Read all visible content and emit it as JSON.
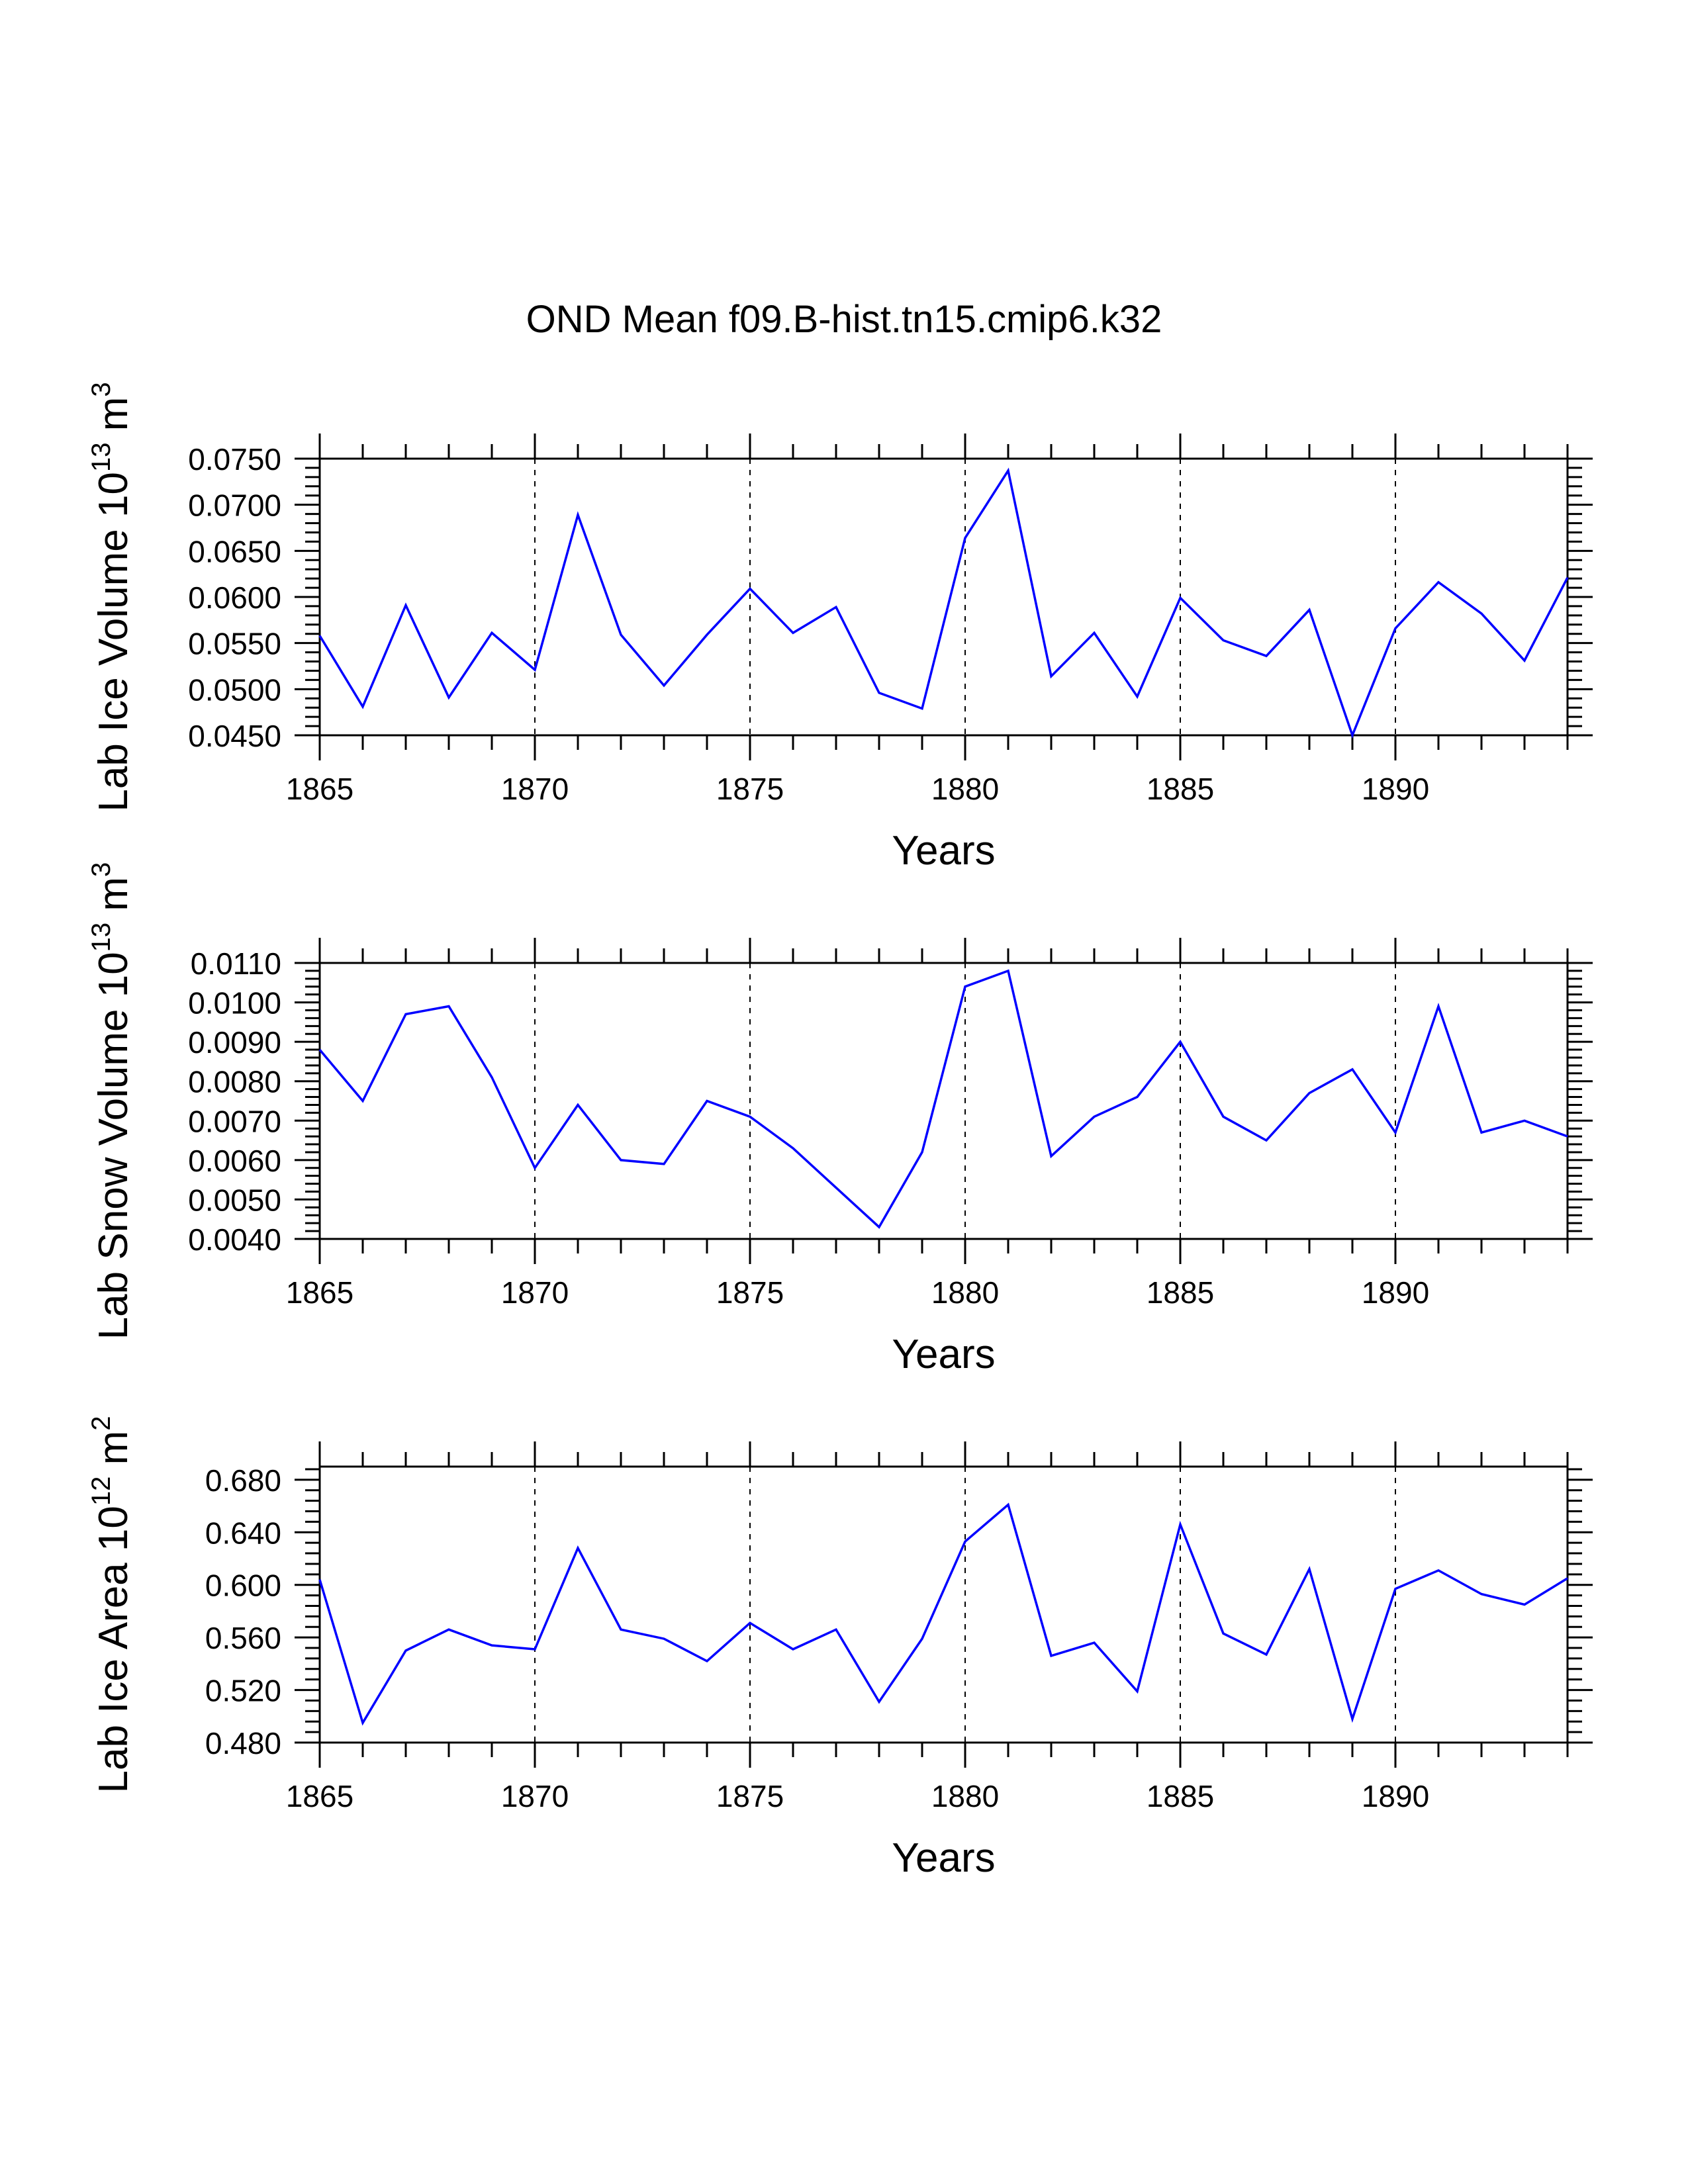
{
  "title": "OND Mean f09.B-hist.tn15.cmip6.k32",
  "colors": {
    "line": "#0000ff",
    "axis": "#000000",
    "grid": "#000000"
  },
  "chart_data": [
    {
      "type": "line",
      "title": "",
      "ylabel_main": "Lab Ice Volume 10",
      "ylabel_exp": "13",
      "ylabel_unit": " m",
      "ylabel_unit_exp": "3",
      "xlabel": "Years",
      "xlim": [
        1865,
        1894
      ],
      "ylim": [
        0.045,
        0.075
      ],
      "major_yticks": [
        0.045,
        0.05,
        0.055,
        0.06,
        0.065,
        0.07,
        0.075
      ],
      "ytick_labels": [
        "0.0450",
        "0.0500",
        "0.0550",
        "0.0600",
        "0.0650",
        "0.0700",
        "0.0750"
      ],
      "minor_ystep": 0.001,
      "xticks": [
        1865,
        1870,
        1875,
        1880,
        1885,
        1890
      ],
      "xtick_labels": [
        "1865",
        "1870",
        "1875",
        "1880",
        "1885",
        "1890"
      ],
      "gridlines_x": [
        1870,
        1875,
        1880,
        1885,
        1890
      ],
      "x": [
        1865,
        1866,
        1867,
        1868,
        1869,
        1870,
        1871,
        1872,
        1873,
        1874,
        1875,
        1876,
        1877,
        1878,
        1879,
        1880,
        1881,
        1882,
        1883,
        1884,
        1885,
        1886,
        1887,
        1888,
        1889,
        1890,
        1891,
        1892,
        1893,
        1894
      ],
      "y": [
        0.0558,
        0.0481,
        0.0591,
        0.0491,
        0.0561,
        0.0521,
        0.0689,
        0.0559,
        0.0504,
        0.0559,
        0.0609,
        0.0561,
        0.0589,
        0.0496,
        0.0479,
        0.0664,
        0.0737,
        0.0514,
        0.0561,
        0.0492,
        0.0599,
        0.0553,
        0.0536,
        0.0586,
        0.045,
        0.0566,
        0.0616,
        0.0582,
        0.0531,
        0.0621
      ]
    },
    {
      "type": "line",
      "title": "",
      "ylabel_main": "Lab Snow Volume 10",
      "ylabel_exp": "13",
      "ylabel_unit": " m",
      "ylabel_unit_exp": "3",
      "xlabel": "Years",
      "xlim": [
        1865,
        1894
      ],
      "ylim": [
        0.004,
        0.011
      ],
      "major_yticks": [
        0.004,
        0.005,
        0.006,
        0.007,
        0.008,
        0.009,
        0.01,
        0.011
      ],
      "ytick_labels": [
        "0.0040",
        "0.0050",
        "0.0060",
        "0.0070",
        "0.0080",
        "0.0090",
        "0.0100",
        "0.0110"
      ],
      "minor_ystep": 0.0002,
      "xticks": [
        1865,
        1870,
        1875,
        1880,
        1885,
        1890
      ],
      "xtick_labels": [
        "1865",
        "1870",
        "1875",
        "1880",
        "1885",
        "1890"
      ],
      "gridlines_x": [
        1870,
        1875,
        1880,
        1885,
        1890
      ],
      "x": [
        1865,
        1866,
        1867,
        1868,
        1869,
        1870,
        1871,
        1872,
        1873,
        1874,
        1875,
        1876,
        1877,
        1878,
        1879,
        1880,
        1881,
        1882,
        1883,
        1884,
        1885,
        1886,
        1887,
        1888,
        1889,
        1890,
        1891,
        1892,
        1893,
        1894
      ],
      "y": [
        0.0088,
        0.0075,
        0.0097,
        0.0099,
        0.0081,
        0.0058,
        0.0074,
        0.006,
        0.0059,
        0.0075,
        0.0071,
        0.0063,
        0.0053,
        0.0043,
        0.0062,
        0.0104,
        0.0108,
        0.0061,
        0.0071,
        0.0076,
        0.009,
        0.0071,
        0.0065,
        0.0077,
        0.0083,
        0.0067,
        0.0099,
        0.0067,
        0.007,
        0.0066
      ]
    },
    {
      "type": "line",
      "title": "",
      "ylabel_main": "Lab Ice Area 10",
      "ylabel_exp": "12",
      "ylabel_unit": " m",
      "ylabel_unit_exp": "2",
      "xlabel": "Years",
      "xlim": [
        1865,
        1894
      ],
      "ylim": [
        0.48,
        0.69
      ],
      "major_yticks": [
        0.48,
        0.52,
        0.56,
        0.6,
        0.64,
        0.68
      ],
      "ytick_labels": [
        "0.480",
        "0.520",
        "0.560",
        "0.600",
        "0.640",
        "0.680"
      ],
      "minor_ystep": 0.008,
      "xticks": [
        1865,
        1870,
        1875,
        1880,
        1885,
        1890
      ],
      "xtick_labels": [
        "1865",
        "1870",
        "1875",
        "1880",
        "1885",
        "1890"
      ],
      "gridlines_x": [
        1870,
        1875,
        1880,
        1885,
        1890
      ],
      "x": [
        1865,
        1866,
        1867,
        1868,
        1869,
        1870,
        1871,
        1872,
        1873,
        1874,
        1875,
        1876,
        1877,
        1878,
        1879,
        1880,
        1881,
        1882,
        1883,
        1884,
        1885,
        1886,
        1887,
        1888,
        1889,
        1890,
        1891,
        1892,
        1893,
        1894
      ],
      "y": [
        0.604,
        0.495,
        0.55,
        0.566,
        0.554,
        0.551,
        0.628,
        0.566,
        0.559,
        0.542,
        0.571,
        0.551,
        0.566,
        0.511,
        0.559,
        0.633,
        0.661,
        0.546,
        0.556,
        0.519,
        0.646,
        0.563,
        0.547,
        0.612,
        0.498,
        0.597,
        0.611,
        0.593,
        0.585,
        0.605
      ]
    }
  ]
}
